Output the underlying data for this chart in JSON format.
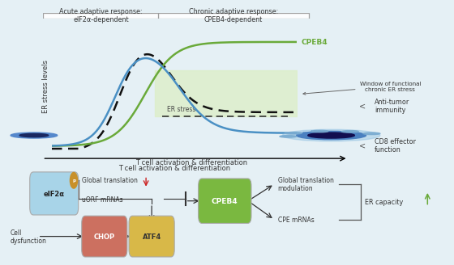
{
  "bg_color": "#e5f0f5",
  "bottom_bg": "#f0f0f0",
  "title_box1": "Acute adaptive response:\nelF2α-dependent",
  "title_box2": "Chronic adaptive response:\nCPEB4-dependent",
  "cpeb4_label": "CPEB4",
  "peif2a_label": "peIF2α",
  "er_stress_label": "ER stress",
  "window_label": "Window of functional\nchronic ER stress",
  "xaxis_label": "T cell activation & differentiation",
  "yaxis_label": "ER stress levels",
  "green_color": "#6aaa3a",
  "blue_color": "#4a90c4",
  "dashed_color": "#111111",
  "green_shading": "#ddeec8",
  "anti_tumor": "Anti-tumor\nimmunity",
  "cd8_label": "CD8 effector\nfunction",
  "eif2a_box_color": "#a8d4e8",
  "cpeb4_box_color": "#7ab840",
  "chop_box_color": "#cc7060",
  "atf4_box_color": "#d8b848",
  "eif2a_text": "eIF2α",
  "cpeb4_text": "CPEB4",
  "chop_text": "CHOP",
  "atf4_text": "ATF4",
  "phospho_color": "#c8902a",
  "global_translation": "Global translation",
  "uorf_mrnas": "uORF mRNAs",
  "global_translation_mod": "Global translation\nmodulation",
  "cpe_mrnas": "CPE mRNAs",
  "er_capacity": "ER capacity",
  "cell_dysfunction": "Cell\ndysfunction"
}
